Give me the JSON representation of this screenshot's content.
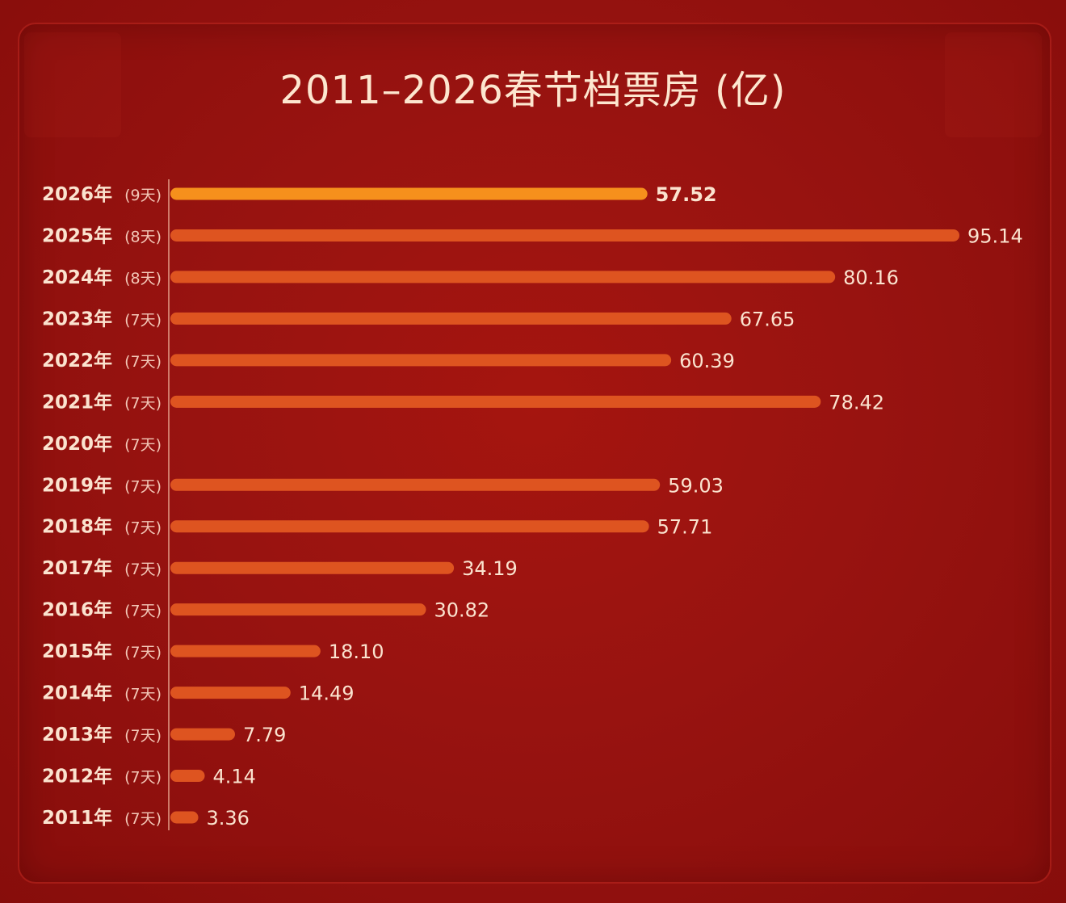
{
  "colors": {
    "background": "#971210",
    "bar": "#de5420",
    "highlight_bar": "#f6901c",
    "text": "#fbe3cf"
  },
  "chart_data": {
    "type": "bar",
    "orientation": "horizontal",
    "title": "2011–2026春节档票房 (亿)",
    "categories": [
      {
        "year": "2026年",
        "days": "(9天)",
        "value": 57.52,
        "label": "57.52",
        "highlight": true
      },
      {
        "year": "2025年",
        "days": "(8天)",
        "value": 95.14,
        "label": "95.14"
      },
      {
        "year": "2024年",
        "days": "(8天)",
        "value": 80.16,
        "label": "80.16"
      },
      {
        "year": "2023年",
        "days": "(7天)",
        "value": 67.65,
        "label": "67.65"
      },
      {
        "year": "2022年",
        "days": "(7天)",
        "value": 60.39,
        "label": "60.39"
      },
      {
        "year": "2021年",
        "days": "(7天)",
        "value": 78.42,
        "label": "78.42"
      },
      {
        "year": "2020年",
        "days": "(7天)",
        "value": null,
        "label": ""
      },
      {
        "year": "2019年",
        "days": "(7天)",
        "value": 59.03,
        "label": "59.03"
      },
      {
        "year": "2018年",
        "days": "(7天)",
        "value": 57.71,
        "label": "57.71"
      },
      {
        "year": "2017年",
        "days": "(7天)",
        "value": 34.19,
        "label": "34.19"
      },
      {
        "year": "2016年",
        "days": "(7天)",
        "value": 30.82,
        "label": "30.82"
      },
      {
        "year": "2015年",
        "days": "(7天)",
        "value": 18.1,
        "label": "18.10"
      },
      {
        "year": "2014年",
        "days": "(7天)",
        "value": 14.49,
        "label": "14.49"
      },
      {
        "year": "2013年",
        "days": "(7天)",
        "value": 7.79,
        "label": "7.79"
      },
      {
        "year": "2012年",
        "days": "(7天)",
        "value": 4.14,
        "label": "4.14"
      },
      {
        "year": "2011年",
        "days": "(7天)",
        "value": 3.36,
        "label": "3.36"
      }
    ],
    "xlim": [
      0,
      95.14
    ],
    "grid": false,
    "legend": "none"
  }
}
